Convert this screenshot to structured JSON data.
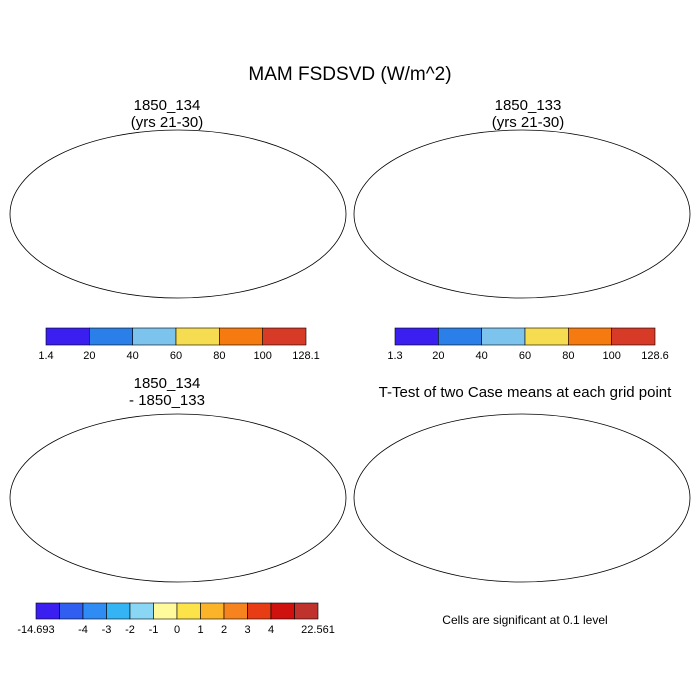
{
  "title": "MAM FSDSVD (W/m^2)",
  "panels": {
    "top_left": {
      "title_line1": "1850_134",
      "title_line2": "(yrs 21-30)"
    },
    "top_right": {
      "title_line1": "1850_133",
      "title_line2": "(yrs 21-30)"
    },
    "bottom_left": {
      "title_line1": "1850_134",
      "title_line2": "- 1850_133"
    },
    "bottom_right": {
      "title": "T-Test of two Case means at each grid point",
      "note": "Cells are significant at 0.1 level"
    }
  },
  "colorbars": {
    "top_left": {
      "labels": [
        "1.4",
        "20",
        "40",
        "60",
        "80",
        "100",
        "128.1"
      ],
      "colors": [
        "#3a1ff0",
        "#2b7fe8",
        "#7cc4ee",
        "#f5dc50",
        "#f57a10",
        "#d83a28"
      ]
    },
    "top_right": {
      "labels": [
        "1.3",
        "20",
        "40",
        "60",
        "80",
        "100",
        "128.6"
      ],
      "colors": [
        "#3a1ff0",
        "#2b7fe8",
        "#7cc4ee",
        "#f5dc50",
        "#f57a10",
        "#d83a28"
      ]
    },
    "bottom_left": {
      "labels": [
        "-14.693",
        "-4",
        "-3",
        "-2",
        "-1",
        "0",
        "1",
        "2",
        "3",
        "4",
        "22.561"
      ],
      "colors": [
        "#3a1ff0",
        "#2f5ef0",
        "#2f8cf5",
        "#35b4f5",
        "#8ad6f5",
        "#fffa9b",
        "#fce34a",
        "#fbb32a",
        "#f7831e",
        "#e83c14",
        "#d0120e",
        "#c0322c"
      ]
    }
  },
  "significance_color": "#e80000"
}
